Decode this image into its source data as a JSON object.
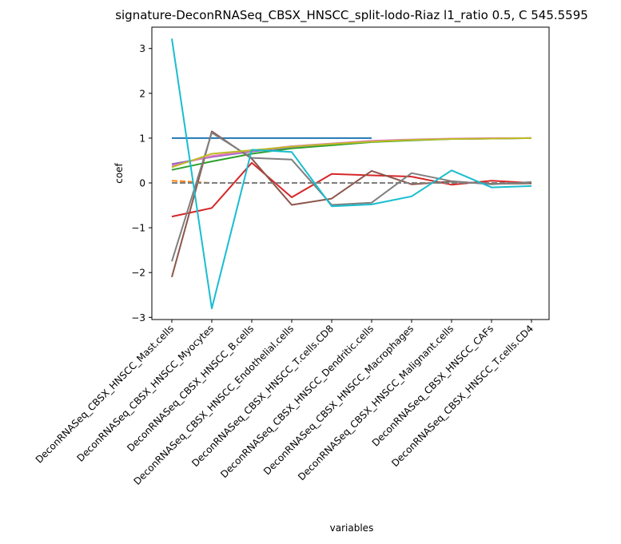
{
  "chart_data": {
    "type": "line",
    "title": "signature-DeconRNASeq_CBSX_HNSCC_split-lodo-Riaz l1_ratio 0.5, C 545.5595",
    "xlabel": "variables",
    "ylabel": "coef",
    "ylim": [
      -3.1,
      3.5
    ],
    "yticks": [
      3,
      2,
      1,
      0,
      -1,
      -2,
      -3
    ],
    "ytick_labels": [
      "3",
      "2",
      "1",
      "0",
      "−1",
      "−2",
      "−3"
    ],
    "grid": false,
    "legend": "none",
    "categories": [
      "DeconRNASeq_CBSX_HNSCC_Mast.cells",
      "DeconRNASeq_CBSX_HNSCC_Myocytes",
      "DeconRNASeq_CBSX_HNSCC_B.cells",
      "DeconRNASeq_CBSX_HNSCC_Endothelial.cells",
      "DeconRNASeq_CBSX_HNSCC_T.cells.CD8",
      "DeconRNASeq_CBSX_HNSCC_Dendritic.cells",
      "DeconRNASeq_CBSX_HNSCC_Macrophages",
      "DeconRNASeq_CBSX_HNSCC_Malignant.cells",
      "DeconRNASeq_CBSX_HNSCC_CAFs",
      "DeconRNASeq_CBSX_HNSCC_T.cells.CD4"
    ],
    "series": [
      {
        "color": "#1f77b4",
        "dash": false,
        "values": [
          1.0,
          1.0,
          1.0,
          1.0,
          1.0,
          1.0,
          null,
          null,
          null,
          null
        ]
      },
      {
        "color": "#ff7f0e",
        "dash": true,
        "values": [
          0.05,
          0.0,
          0.0,
          0.0,
          0.0,
          0.0,
          null,
          null,
          null,
          null
        ]
      },
      {
        "color": "#2ca02c",
        "dash": false,
        "values": [
          0.29,
          0.48,
          0.65,
          0.77,
          0.84,
          0.91,
          0.95,
          0.98,
          0.99,
          1.0
        ]
      },
      {
        "color": "#d62728",
        "dash": false,
        "values": [
          -0.75,
          -0.56,
          0.45,
          -0.32,
          0.2,
          0.17,
          0.14,
          -0.04,
          0.05,
          0.0
        ]
      },
      {
        "color": "#9467bd",
        "dash": false,
        "values": [
          0.42,
          0.58,
          0.7,
          0.8,
          0.87,
          0.93,
          0.96,
          0.98,
          0.99,
          1.0
        ]
      },
      {
        "color": "#8c564b",
        "dash": false,
        "values": [
          -2.1,
          1.15,
          0.54,
          -0.49,
          -0.35,
          0.27,
          -0.03,
          0.03,
          -0.02,
          -0.01
        ]
      },
      {
        "color": "#e377c2",
        "dash": false,
        "values": [
          0.38,
          0.6,
          0.72,
          0.82,
          0.88,
          0.94,
          0.97,
          0.99,
          1.0,
          1.0
        ]
      },
      {
        "color": "#7f7f7f",
        "dash": true,
        "values": [
          0.0,
          0.0,
          0.0,
          0.0,
          0.0,
          0.0,
          0.0,
          0.0,
          0.0,
          0.0
        ]
      },
      {
        "color": "#7f7f7f",
        "dash": false,
        "values": [
          -1.75,
          1.12,
          0.56,
          0.52,
          -0.49,
          -0.44,
          0.22,
          0.04,
          -0.03,
          0.02
        ]
      },
      {
        "color": "#bcbd22",
        "dash": false,
        "values": [
          0.35,
          0.65,
          0.73,
          0.81,
          0.87,
          0.92,
          0.96,
          0.98,
          0.99,
          1.0
        ]
      },
      {
        "color": "#17becf",
        "dash": false,
        "values": [
          3.22,
          -2.8,
          0.74,
          0.69,
          -0.52,
          -0.48,
          -0.3,
          0.28,
          -0.1,
          -0.07
        ]
      }
    ]
  }
}
